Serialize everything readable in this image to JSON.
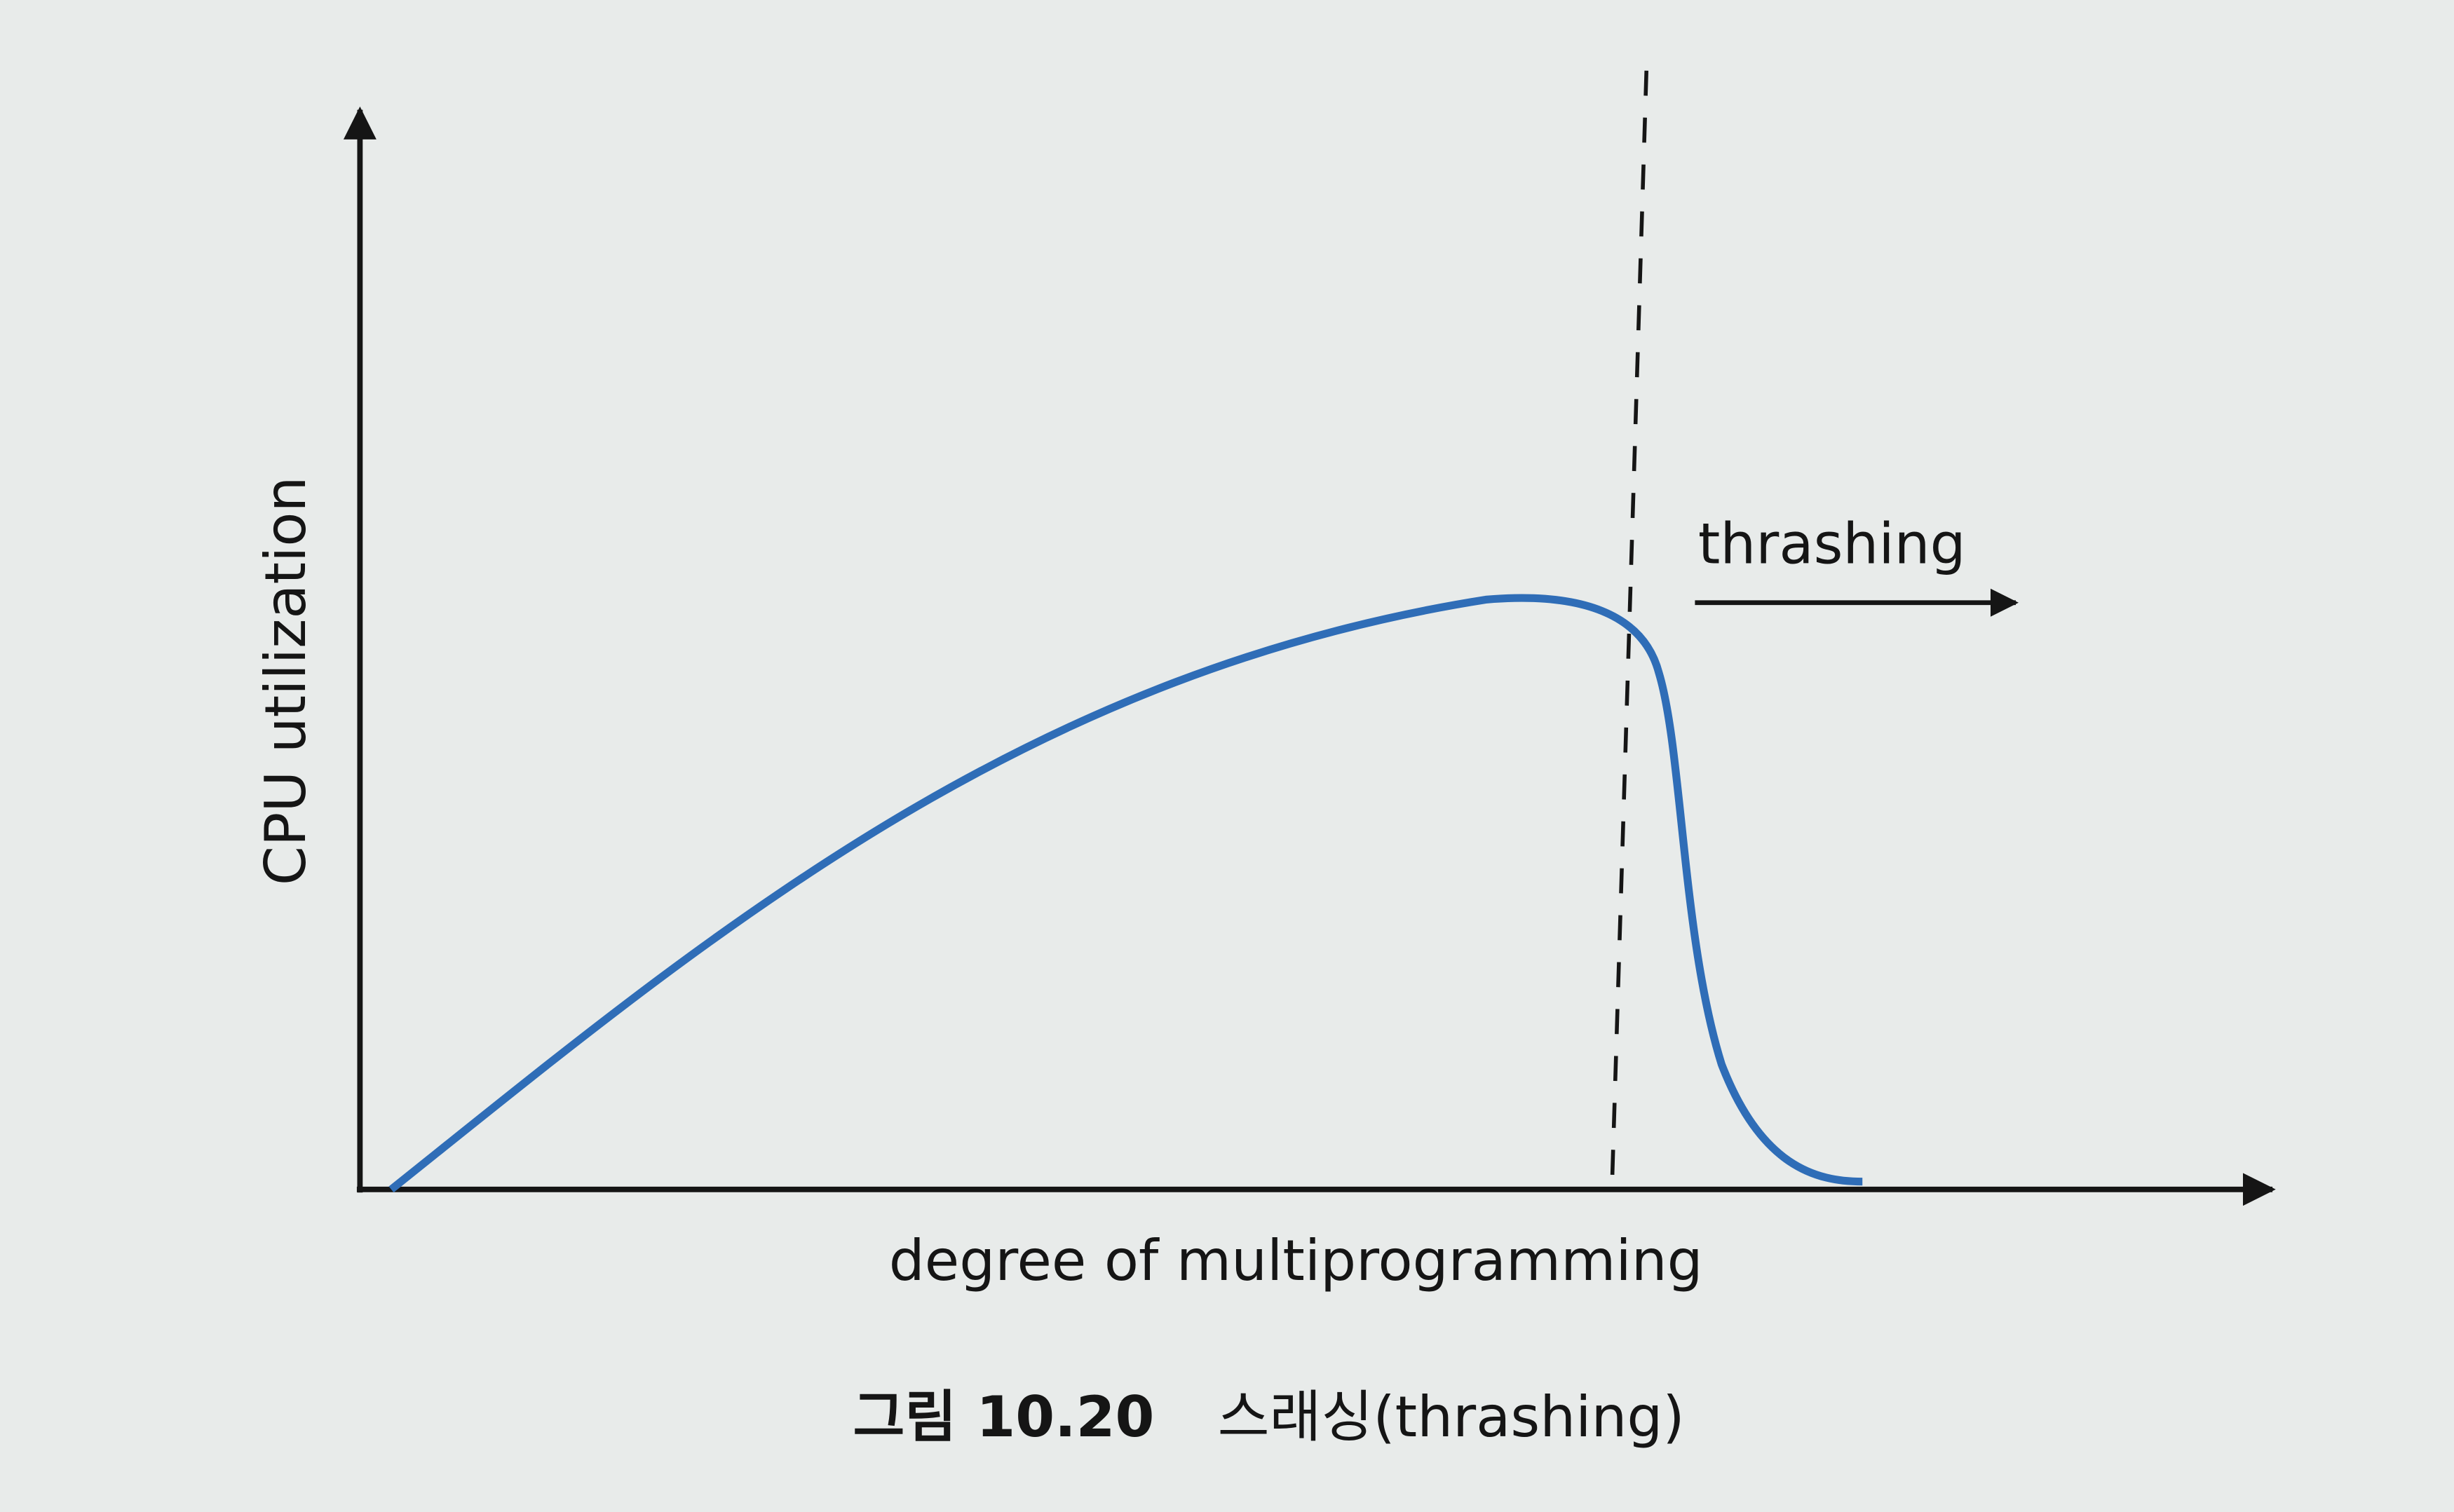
{
  "axes": {
    "y_label": "CPU utilization",
    "x_label": "degree of multiprogramming"
  },
  "annotation": "thrashing",
  "caption": {
    "number": "그림 10.20",
    "title": "스래싱(thrashing)"
  }
}
